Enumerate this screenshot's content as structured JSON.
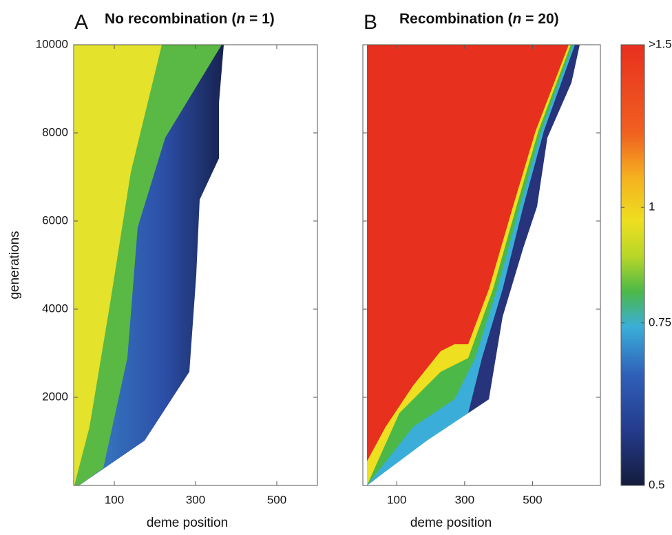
{
  "chart_data": [
    {
      "type": "heatmap",
      "panel": "A",
      "title": [
        "No recombination (",
        "n",
        " = 1)"
      ],
      "xlabel": "deme position",
      "ylabel": "generations",
      "xlim": [
        0,
        600
      ],
      "xticks": [
        100,
        300,
        500
      ],
      "ylim": [
        0,
        10000
      ],
      "yticks": [
        2000,
        4000,
        6000,
        8000,
        10000
      ]
    },
    {
      "type": "heatmap",
      "panel": "B",
      "title": [
        "Recombination (",
        "n",
        " = 20)"
      ],
      "xlabel": "deme position",
      "xlim": [
        0,
        700
      ],
      "xticks": [
        100,
        300,
        500
      ],
      "ylim": [
        0,
        10000
      ],
      "yticks": [
        2000,
        4000,
        6000,
        8000,
        10000
      ]
    },
    {
      "type": "colorbar",
      "log": true,
      "ylim": [
        0.5,
        1.5
      ],
      "yticks": [
        0.5,
        0.75,
        1,
        {
          "value": 1.5,
          "label": ">1.5"
        }
      ]
    }
  ]
}
